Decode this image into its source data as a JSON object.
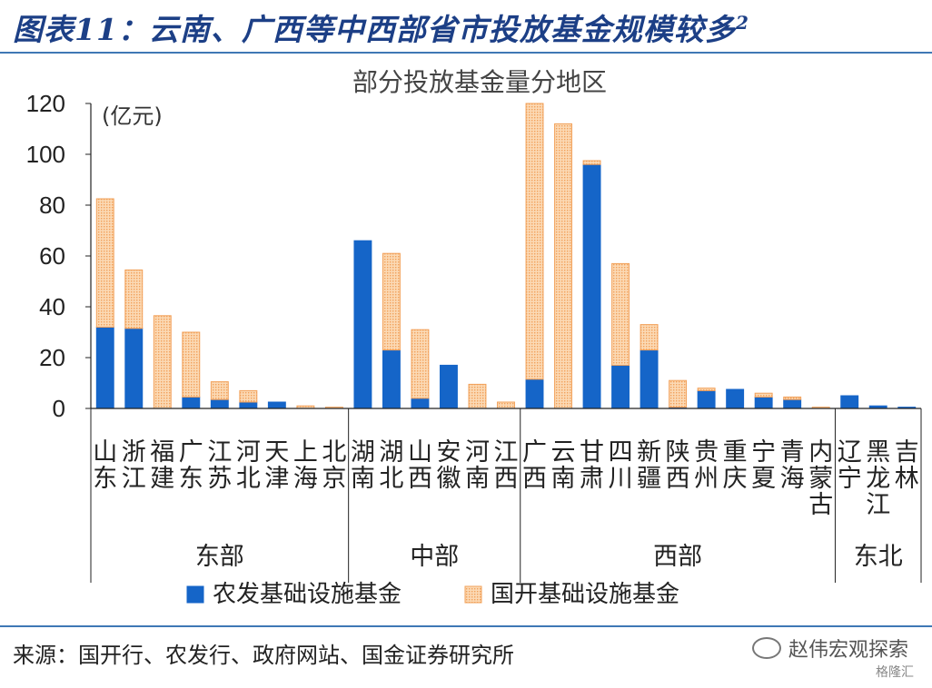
{
  "header": {
    "title": "图表11：云南、广西等中西部省市投放基金规模较多",
    "superscript": "2"
  },
  "footer": {
    "source": "来源：国开行、农发行、政府网站、国金证券研究所",
    "watermark": "赵伟宏观探索",
    "watermark_logo": "格隆汇"
  },
  "chart_data": {
    "type": "bar",
    "stacked": true,
    "title": "部分投放基金量分地区",
    "ylabel": "(亿元)",
    "ylim": [
      0,
      120
    ],
    "yticks": [
      0,
      20,
      40,
      60,
      80,
      100,
      120
    ],
    "grid": false,
    "legend_position": "bottom",
    "categories": [
      "山东",
      "浙江",
      "福建",
      "广东",
      "江苏",
      "河北",
      "天津",
      "上海",
      "北京",
      "湖南",
      "湖北",
      "山西",
      "安徽",
      "河南",
      "江西",
      "广西",
      "云南",
      "甘肃",
      "四川",
      "新疆",
      "陕西",
      "贵州",
      "重庆",
      "宁夏",
      "青海",
      "内蒙古",
      "辽宁",
      "黑龙江",
      "吉林"
    ],
    "groups": [
      {
        "name": "东部",
        "count": 9
      },
      {
        "name": "中部",
        "count": 6
      },
      {
        "name": "西部",
        "count": 11
      },
      {
        "name": "东北",
        "count": 3
      }
    ],
    "series": [
      {
        "name": "农发基础设施基金",
        "color": "#1565c8",
        "pattern": "solid",
        "values": [
          32,
          31.5,
          0,
          4.5,
          3.5,
          2.5,
          2.5,
          0,
          0,
          66,
          23,
          4,
          17,
          0,
          0,
          11.5,
          0,
          96,
          17,
          23,
          0.5,
          7,
          7.5,
          4.5,
          3.5,
          0,
          5,
          1,
          0.5
        ]
      },
      {
        "name": "国开基础设施基金",
        "color": "#f4a460",
        "pattern": "dotted",
        "values": [
          50.5,
          23,
          36.5,
          25.5,
          7,
          4.5,
          0,
          1,
          0.5,
          0,
          38,
          27,
          0,
          9.5,
          2.5,
          108.5,
          112,
          1.5,
          40,
          10,
          10.5,
          1,
          0,
          1.5,
          1,
          0.5,
          0,
          0,
          0
        ]
      }
    ]
  }
}
